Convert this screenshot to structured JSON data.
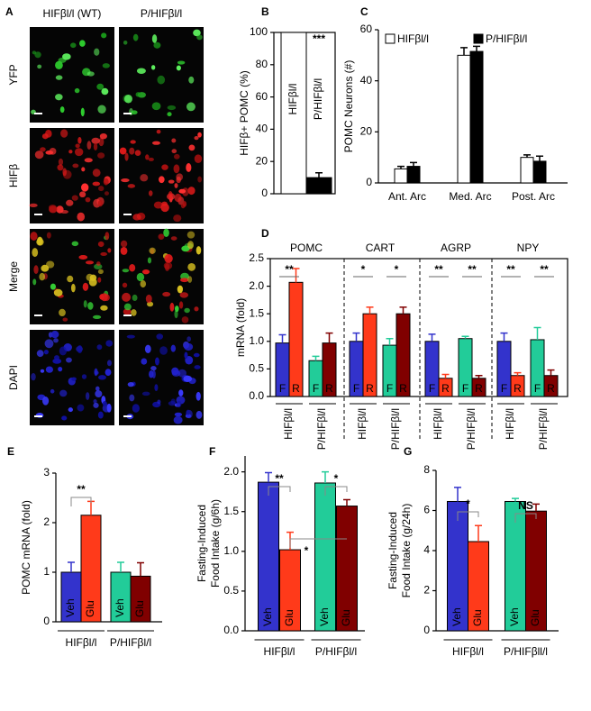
{
  "figure": {
    "panel_labels": [
      "A",
      "B",
      "C",
      "D",
      "E",
      "F",
      "G"
    ],
    "image_panel": {
      "columns": [
        "HIFβl/l (WT)",
        "P/HIFβl/l"
      ],
      "rows": [
        "YFP",
        "HIFβ",
        "Merge",
        "DAPI"
      ]
    }
  },
  "chart_data": [
    {
      "type": "bar",
      "ylabel": [
        "HIFβ+ POMC (%)"
      ],
      "categories": [
        "HIFβl/l",
        "P/HIFβl/l"
      ],
      "values": [
        100,
        10
      ],
      "errors": [
        null,
        3
      ],
      "colors": [
        "#ffffff",
        "#000000"
      ],
      "ylim": [
        0,
        100
      ],
      "yticks": [
        0,
        20,
        40,
        60,
        80,
        100
      ],
      "annotations": [
        "***"
      ]
    },
    {
      "type": "grouped_bar",
      "ylabel": [
        "POMC Neurons (#)"
      ],
      "categories": [
        "Ant. Arc",
        "Med. Arc",
        "Post. Arc"
      ],
      "series": [
        {
          "name": "HIFβl/l",
          "color": "#ffffff",
          "values": [
            5.5,
            50,
            10
          ],
          "errors": [
            1,
            3,
            1
          ]
        },
        {
          "name": "P/HIFβl/l",
          "color": "#000000",
          "values": [
            6.5,
            51.5,
            8.5
          ],
          "errors": [
            1.5,
            2,
            2
          ]
        }
      ],
      "ylim": [
        0,
        60
      ],
      "yticks": [
        0,
        20,
        40,
        60
      ],
      "legend": "top"
    },
    {
      "type": "grouped_bar",
      "ylabel": [
        "mRNA  (fold)"
      ],
      "categories": [
        "POMC",
        "CART",
        "AGRP",
        "NPY"
      ],
      "groups": [
        "HIFβl/l",
        "P/HIFβl/l"
      ],
      "series": [
        {
          "name": "F",
          "color": "#3333cc",
          "values": [
            0.97,
            1.0,
            1.0,
            1.0
          ],
          "errors": [
            0.15,
            0.15,
            0.13,
            0.15
          ]
        },
        {
          "name": "R",
          "color": "#ff3a1a",
          "values": [
            2.07,
            1.5,
            0.33,
            0.38
          ],
          "errors": [
            0.25,
            0.12,
            0.07,
            0.05
          ]
        },
        {
          "name": "F",
          "color": "#22cc99",
          "values": [
            0.65,
            0.93,
            1.05,
            1.03
          ],
          "errors": [
            0.08,
            0.12,
            0.04,
            0.22
          ]
        },
        {
          "name": "R",
          "color": "#800000",
          "values": [
            0.97,
            1.5,
            0.33,
            0.38
          ],
          "errors": [
            0.18,
            0.12,
            0.05,
            0.1
          ]
        }
      ],
      "ylim": [
        0,
        2.5
      ],
      "yticks": [
        {
          "value": 0,
          "label": "0.0"
        },
        0.5,
        {
          "value": 1,
          "label": "1.0"
        },
        1.5,
        {
          "value": 2,
          "label": "2.0"
        },
        2.5
      ],
      "annotations": [
        [
          "**",
          null
        ],
        [
          "*",
          "*"
        ],
        [
          "**",
          "**"
        ],
        [
          "**",
          "**"
        ]
      ]
    },
    {
      "type": "bar",
      "ylabel": [
        "POMC mRNA  (fold)"
      ],
      "categories": [
        "Veh",
        "Glu",
        "Veh",
        "Glu"
      ],
      "values": [
        1.0,
        2.15,
        1.0,
        0.92
      ],
      "errors": [
        0.2,
        0.28,
        0.2,
        0.27
      ],
      "colors": [
        "#3333cc",
        "#ff3a1a",
        "#22cc99",
        "#800000"
      ],
      "groups": [
        "HIFβl/l",
        "P/HIFβl/l"
      ],
      "ylim": [
        0,
        3
      ],
      "yticks": [
        0,
        1,
        2,
        3
      ],
      "annotations": [
        "**"
      ]
    },
    {
      "type": "bar",
      "ylabel": [
        "Fasting-Induced",
        "Food Intake (g/6h)"
      ],
      "categories": [
        "Veh",
        "Glu",
        "Veh",
        "Glu"
      ],
      "values": [
        1.87,
        1.02,
        1.86,
        1.57
      ],
      "errors": [
        0.12,
        0.22,
        0.14,
        0.08
      ],
      "colors": [
        "#3333cc",
        "#ff3a1a",
        "#22cc99",
        "#800000"
      ],
      "groups": [
        "HIFβl/l",
        "P/HIFβl/l"
      ],
      "ylim": [
        0,
        2.2
      ],
      "yticks": [
        {
          "value": 0,
          "label": "0.0"
        },
        0.5,
        {
          "value": 1,
          "label": "1.0"
        },
        1.5,
        {
          "value": 2,
          "label": "2.0"
        }
      ],
      "annotations": [
        "**",
        "*",
        "*"
      ]
    },
    {
      "type": "bar",
      "ylabel": [
        "Fasting-Induced",
        "Food Intake (g/24h)"
      ],
      "categories": [
        "Veh",
        "Glu",
        "Veh",
        "Glu"
      ],
      "values": [
        6.45,
        4.45,
        6.45,
        5.97
      ],
      "errors": [
        0.7,
        0.8,
        0.15,
        0.35
      ],
      "colors": [
        "#3333cc",
        "#ff3a1a",
        "#22cc99",
        "#800000"
      ],
      "groups": [
        "HIFβl/l",
        "P/HIFβll/l"
      ],
      "ylim": [
        0,
        8
      ],
      "yticks": [
        0,
        2,
        4,
        6,
        8
      ],
      "annotations": [
        "*",
        "NS"
      ]
    }
  ]
}
